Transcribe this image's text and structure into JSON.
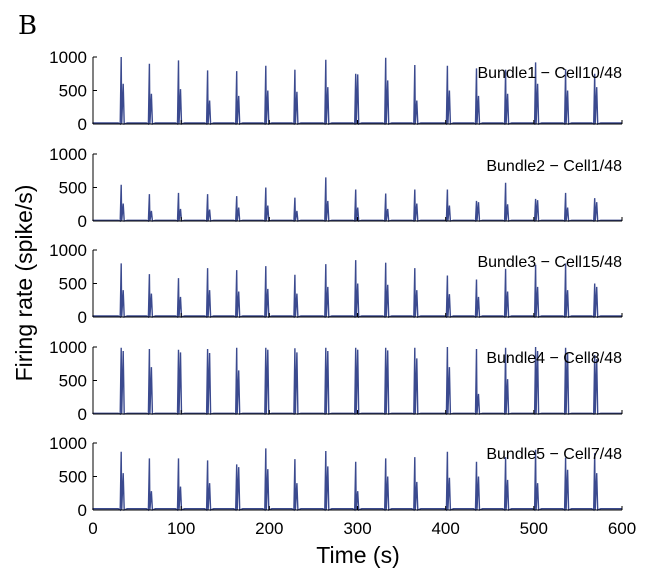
{
  "panel_letter": "B",
  "chart_data": {
    "type": "line",
    "xlabel": "Time (s)",
    "ylabel": "Firing rate (spike/s)",
    "xlim": [
      0,
      600
    ],
    "ylim": [
      0,
      1000
    ],
    "xticks": [
      "0",
      "100",
      "200",
      "300",
      "400",
      "500",
      "600"
    ],
    "yticks": [
      "0",
      "500",
      "1000"
    ],
    "grid": false,
    "series": [
      {
        "name": "Bundle1 − Cell10/48",
        "spike_times": [
          32,
          64,
          97,
          130,
          163,
          196,
          229,
          264,
          298,
          332,
          365,
          402,
          435,
          468,
          502,
          536,
          569
        ],
        "peak_rates": [
          1000,
          900,
          950,
          800,
          790,
          870,
          810,
          960,
          750,
          990,
          880,
          870,
          830,
          810,
          920,
          820,
          750
        ],
        "secondary_rates": [
          600,
          450,
          520,
          350,
          420,
          500,
          480,
          550,
          740,
          650,
          350,
          500,
          420,
          450,
          600,
          500,
          550
        ],
        "baseline_rate": 15
      },
      {
        "name": "Bundle2 − Cell1/48",
        "spike_times": [
          32,
          64,
          97,
          130,
          163,
          196,
          229,
          264,
          298,
          332,
          365,
          402,
          435,
          468,
          502,
          536,
          569
        ],
        "peak_rates": [
          540,
          400,
          420,
          400,
          370,
          500,
          350,
          650,
          470,
          410,
          470,
          470,
          300,
          570,
          330,
          420,
          340
        ],
        "secondary_rates": [
          260,
          150,
          180,
          170,
          200,
          230,
          150,
          300,
          200,
          180,
          260,
          230,
          280,
          250,
          310,
          200,
          280
        ],
        "baseline_rate": 10
      },
      {
        "name": "Bundle3 − Cell15/48",
        "spike_times": [
          32,
          64,
          97,
          130,
          163,
          196,
          229,
          264,
          298,
          332,
          365,
          402,
          435,
          468,
          502,
          536,
          569
        ],
        "peak_rates": [
          800,
          640,
          580,
          730,
          700,
          760,
          630,
          790,
          850,
          810,
          730,
          620,
          560,
          720,
          780,
          800,
          500
        ],
        "secondary_rates": [
          400,
          350,
          300,
          400,
          380,
          420,
          350,
          450,
          500,
          480,
          400,
          340,
          300,
          380,
          450,
          400,
          450
        ],
        "baseline_rate": 15
      },
      {
        "name": "Bundle4 − Cell8/48",
        "spike_times": [
          32,
          64,
          97,
          130,
          163,
          196,
          229,
          264,
          298,
          332,
          365,
          402,
          435,
          468,
          502,
          536,
          569
        ],
        "peak_rates": [
          990,
          970,
          960,
          970,
          990,
          990,
          980,
          990,
          990,
          990,
          990,
          1000,
          970,
          990,
          1000,
          990,
          880
        ],
        "secondary_rates": [
          940,
          700,
          920,
          910,
          650,
          960,
          920,
          940,
          960,
          950,
          830,
          700,
          300,
          520,
          940,
          910,
          820
        ],
        "baseline_rate": 10
      },
      {
        "name": "Bundle5 − Cell7/48",
        "spike_times": [
          32,
          64,
          97,
          130,
          163,
          196,
          229,
          264,
          298,
          332,
          365,
          402,
          435,
          468,
          502,
          536,
          569
        ],
        "peak_rates": [
          870,
          770,
          770,
          740,
          680,
          920,
          760,
          880,
          720,
          770,
          790,
          870,
          720,
          790,
          900,
          780,
          850
        ],
        "secondary_rates": [
          550,
          280,
          350,
          400,
          640,
          610,
          400,
          650,
          280,
          500,
          420,
          480,
          500,
          450,
          400,
          600,
          550
        ],
        "baseline_rate": 20
      }
    ]
  }
}
